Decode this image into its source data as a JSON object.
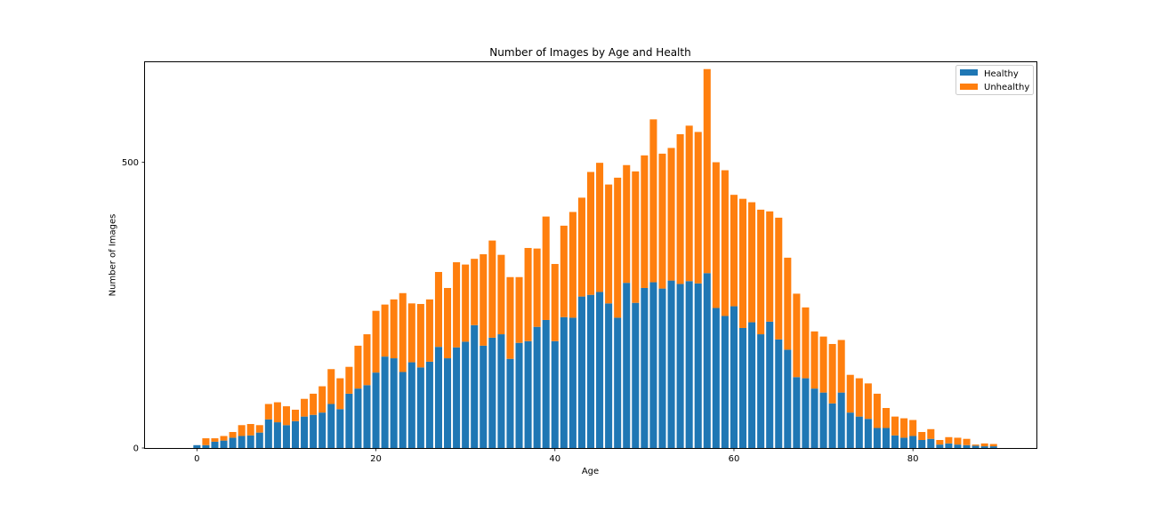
{
  "chart_data": {
    "type": "bar",
    "stacked": true,
    "title": "Number of Images by Age and Health",
    "xlabel": "Age",
    "ylabel": "Number of Images",
    "x": [
      0,
      1,
      2,
      3,
      4,
      5,
      6,
      7,
      8,
      9,
      10,
      11,
      12,
      13,
      14,
      15,
      16,
      17,
      18,
      19,
      20,
      21,
      22,
      23,
      24,
      25,
      26,
      27,
      28,
      29,
      30,
      31,
      32,
      33,
      34,
      35,
      36,
      37,
      38,
      39,
      40,
      41,
      42,
      43,
      44,
      45,
      46,
      47,
      48,
      49,
      50,
      51,
      52,
      53,
      54,
      55,
      56,
      57,
      58,
      59,
      60,
      61,
      62,
      63,
      64,
      65,
      66,
      67,
      68,
      69,
      70,
      71,
      72,
      73,
      74,
      75,
      76,
      77,
      78,
      79,
      80,
      81,
      82,
      83,
      84,
      85,
      86,
      87,
      88,
      89
    ],
    "series": [
      {
        "name": "Healthy",
        "color": "#1f77b4",
        "values": [
          5,
          5,
          11,
          13,
          18,
          21,
          22,
          27,
          50,
          45,
          40,
          47,
          55,
          58,
          62,
          77,
          68,
          95,
          104,
          110,
          132,
          160,
          157,
          133,
          150,
          141,
          151,
          177,
          157,
          176,
          186,
          215,
          179,
          193,
          199,
          156,
          184,
          187,
          212,
          224,
          187,
          229,
          228,
          265,
          268,
          273,
          253,
          228,
          289,
          254,
          280,
          290,
          279,
          293,
          287,
          292,
          288,
          306,
          245,
          231,
          248,
          210,
          220,
          199,
          221,
          190,
          172,
          124,
          122,
          104,
          97,
          78,
          97,
          62,
          55,
          51,
          35,
          35,
          22,
          18,
          21,
          14,
          16,
          6,
          8,
          6,
          5,
          4,
          3,
          3
        ]
      },
      {
        "name": "Unhealthy",
        "color": "#ff7f0e",
        "values": [
          0,
          12,
          6,
          8,
          10,
          19,
          20,
          13,
          27,
          35,
          33,
          20,
          31,
          37,
          46,
          61,
          54,
          47,
          75,
          89,
          108,
          91,
          103,
          138,
          103,
          111,
          109,
          131,
          123,
          149,
          135,
          116,
          160,
          170,
          139,
          143,
          115,
          163,
          137,
          181,
          135,
          160,
          185,
          173,
          215,
          226,
          208,
          245,
          206,
          230,
          232,
          285,
          236,
          232,
          262,
          272,
          265,
          357,
          255,
          255,
          195,
          226,
          210,
          218,
          193,
          213,
          161,
          146,
          124,
          100,
          98,
          104,
          92,
          66,
          67,
          62,
          60,
          35,
          33,
          34,
          28,
          14,
          17,
          8,
          11,
          12,
          11,
          2,
          5,
          4
        ]
      }
    ],
    "xticks": [
      0,
      20,
      40,
      60,
      80
    ],
    "yticks": [
      0,
      500
    ],
    "xlim": [
      -5.8,
      93.8
    ],
    "ylim": [
      0,
      675
    ],
    "legend": "top-right"
  }
}
